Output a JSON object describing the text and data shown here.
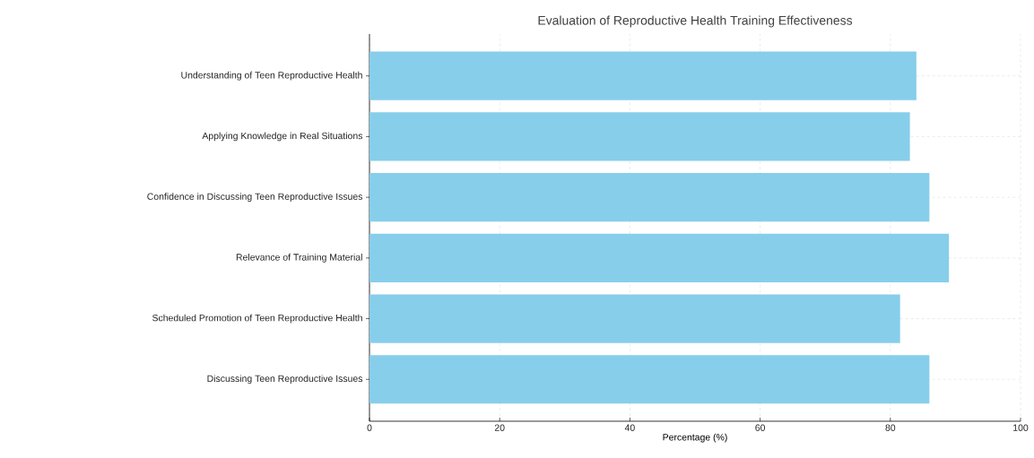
{
  "chart_data": {
    "type": "bar",
    "orientation": "horizontal",
    "title": "Evaluation of Reproductive Health Training Effectiveness",
    "xlabel": "Percentage (%)",
    "categories": [
      "Understanding of Teen Reproductive Health",
      "Applying Knowledge in Real Situations",
      "Confidence in Discussing Teen Reproductive Issues",
      "Relevance of Training Material",
      "Scheduled Promotion of Teen Reproductive Health",
      "Discussing Teen Reproductive Issues"
    ],
    "values": [
      84,
      83,
      86,
      89,
      81.5,
      86
    ],
    "color": "#87ceeb",
    "xlim": [
      0,
      100
    ],
    "xticks": [
      0,
      20,
      40,
      60,
      80,
      100
    ],
    "grid": true
  }
}
